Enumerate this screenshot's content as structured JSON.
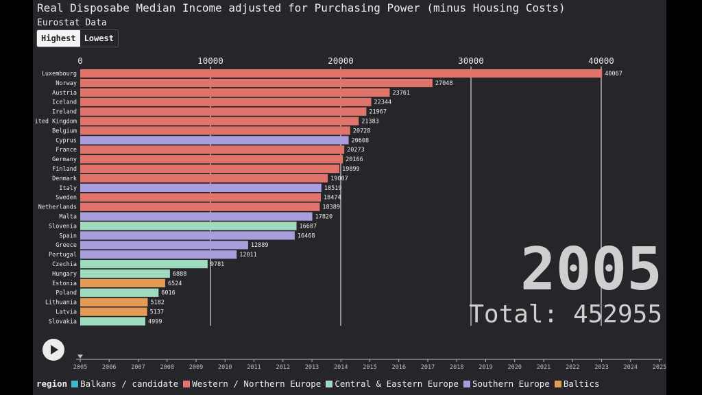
{
  "page": {
    "title": "Real Disposabe Median Income adjusted for Purchasing Power (minus Housing Costs)",
    "subtitle": "Eurostat Data",
    "toggle": {
      "highest": "Highest",
      "lowest": "Lowest",
      "active": "highest"
    },
    "year": "2005",
    "total": "Total: 452955",
    "play_icon": "play-icon",
    "legend": {
      "title": "region",
      "items": [
        {
          "label": "Balkans / candidate",
          "color": "#3fb7c4"
        },
        {
          "label": "Western / Northern Europe",
          "color": "#e0736a"
        },
        {
          "label": "Central & Eastern Europe",
          "color": "#9fdcbf"
        },
        {
          "label": "Southern Europe",
          "color": "#aa9ddb"
        },
        {
          "label": "Baltics",
          "color": "#e39b56"
        }
      ]
    }
  },
  "chart_data": {
    "type": "bar",
    "orientation": "horizontal",
    "categories": [
      "Luxembourg",
      "Norway",
      "Austria",
      "Iceland",
      "Ireland",
      "United Kingdom",
      "Belgium",
      "Cyprus",
      "France",
      "Germany",
      "Finland",
      "Denmark",
      "Italy",
      "Sweden",
      "Netherlands",
      "Malta",
      "Slovenia",
      "Spain",
      "Greece",
      "Portugal",
      "Czechia",
      "Hungary",
      "Estonia",
      "Poland",
      "Lithuania",
      "Latvia",
      "Slovakia"
    ],
    "category_labels": [
      "Luxembourg",
      "Norway",
      "Austria",
      "Iceland",
      "Ireland",
      "ited Kingdom",
      "Belgium",
      "Cyprus",
      "France",
      "Germany",
      "Finland",
      "Denmark",
      "Italy",
      "Sweden",
      "Netherlands",
      "Malta",
      "Slovenia",
      "Spain",
      "Greece",
      "Portugal",
      "Czechia",
      "Hungary",
      "Estonia",
      "Poland",
      "Lithuania",
      "Latvia",
      "Slovakia"
    ],
    "values": [
      40067,
      27048,
      23761,
      22344,
      21967,
      21383,
      20728,
      20608,
      20273,
      20166,
      19899,
      19007,
      18519,
      18474,
      18389,
      17820,
      16607,
      16468,
      12889,
      12011,
      9781,
      6888,
      6524,
      6016,
      5182,
      5137,
      4999
    ],
    "regions": [
      "Western / Northern Europe",
      "Western / Northern Europe",
      "Western / Northern Europe",
      "Western / Northern Europe",
      "Western / Northern Europe",
      "Western / Northern Europe",
      "Western / Northern Europe",
      "Southern Europe",
      "Western / Northern Europe",
      "Western / Northern Europe",
      "Western / Northern Europe",
      "Western / Northern Europe",
      "Southern Europe",
      "Western / Northern Europe",
      "Western / Northern Europe",
      "Southern Europe",
      "Central & Eastern Europe",
      "Southern Europe",
      "Southern Europe",
      "Southern Europe",
      "Central & Eastern Europe",
      "Central & Eastern Europe",
      "Baltics",
      "Central & Eastern Europe",
      "Baltics",
      "Baltics",
      "Central & Eastern Europe"
    ],
    "xlim": [
      0,
      41000
    ],
    "x_ticks": [
      "0",
      "10000",
      "20000",
      "30000",
      "40000"
    ],
    "grid": true,
    "legend_placement": "bottom",
    "timeline": {
      "years": [
        "2005",
        "2006",
        "2007",
        "2008",
        "2009",
        "2010",
        "2011",
        "2012",
        "2013",
        "2014",
        "2015",
        "2016",
        "2017",
        "2018",
        "2019",
        "2020",
        "2021",
        "2022",
        "2023",
        "2024",
        "2025"
      ],
      "current": "2005"
    }
  }
}
